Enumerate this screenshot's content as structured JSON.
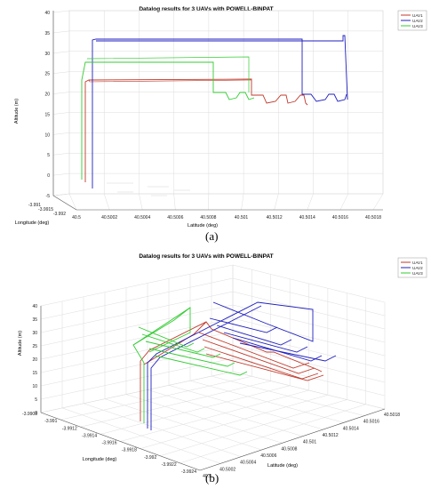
{
  "chart_data": [
    {
      "type": "line",
      "title": "Datalog results for 3 UAVs with POWELL-BINPAT",
      "xlabel": "Latitude (deg)",
      "ylabel": "Longitude (deg)",
      "zlabel": "Altitude (m)",
      "x_ticks": [
        "40.5",
        "40.5002",
        "40.5004",
        "40.5006",
        "40.5008",
        "40.501",
        "40.5012",
        "40.5014",
        "40.5016",
        "40.5018"
      ],
      "y_ticks": [
        "-3.991",
        "-3.9915",
        "-3.992"
      ],
      "z_ticks": [
        "-5",
        "0",
        "5",
        "10",
        "15",
        "20",
        "25",
        "30",
        "35",
        "40"
      ],
      "zlim": [
        -5,
        40
      ],
      "grid": true,
      "legend_position": "top-right",
      "series": [
        {
          "name": "UAV1",
          "color": "#c0392b"
        },
        {
          "name": "UAV2",
          "color": "#1f1fbf"
        },
        {
          "name": "UAV3",
          "color": "#33cc33"
        }
      ],
      "caption": "(a)"
    },
    {
      "type": "line",
      "title": "Datalog results for 3 UAVs with POWELL-BINPAT",
      "xlabel": "Latitude (deg)",
      "ylabel": "Longitude (deg)",
      "zlabel": "Altitude (m)",
      "x_ticks": [
        "40.5",
        "40.5002",
        "40.5004",
        "40.5006",
        "40.5008",
        "40.501",
        "40.5012",
        "40.5014",
        "40.5016",
        "40.5018"
      ],
      "y_ticks": [
        "-3.9908",
        "-3.991",
        "-3.9912",
        "-3.9914",
        "-3.9916",
        "-3.9918",
        "-3.992",
        "-3.9922",
        "-3.9924"
      ],
      "z_ticks": [
        "0",
        "5",
        "10",
        "15",
        "20",
        "25",
        "30",
        "35",
        "40"
      ],
      "zlim": [
        0,
        40
      ],
      "grid": true,
      "legend_position": "top-right",
      "series": [
        {
          "name": "UAV1",
          "color": "#c0392b"
        },
        {
          "name": "UAV2",
          "color": "#1f1fbf"
        },
        {
          "name": "UAV3",
          "color": "#33cc33"
        }
      ],
      "caption": "(b)"
    }
  ]
}
